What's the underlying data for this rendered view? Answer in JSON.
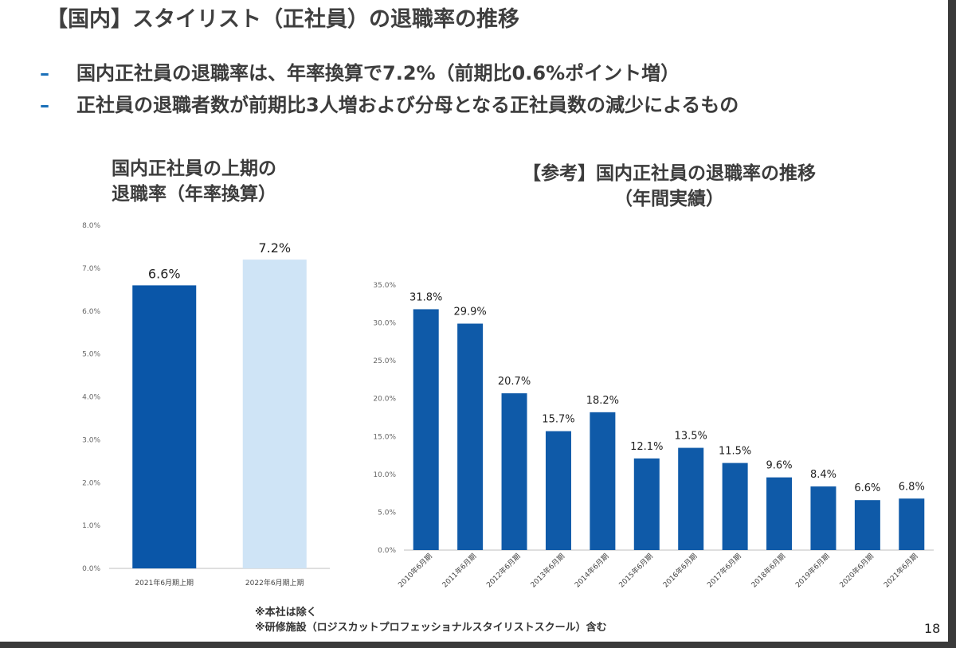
{
  "slide": {
    "title": "【国内】スタイリスト（正社員）の退職率の推移",
    "bullets": [
      "国内正社員の退職率は、年率換算で7.2%（前期比0.6%ポイント増）",
      "正社員の退職者数が前期比3人増および分母となる正社員数の減少によるもの"
    ],
    "bullet_marker": "–",
    "notes": [
      "※本社は除く",
      "※研修施設（ロジスカットプロフェッショナルスタイリストスクール）含む"
    ],
    "page_number": "18",
    "colors": {
      "dark_blue": "#0a56a8",
      "light_blue": "#cfe4f6",
      "bar_blue": "#0f5aa8"
    }
  },
  "chart_data": [
    {
      "type": "bar",
      "title_lines": [
        "国内正社員の上期の",
        "退職率（年率換算）"
      ],
      "categories": [
        "2021年6月期上期",
        "2022年6月期上期"
      ],
      "values": [
        6.6,
        7.2
      ],
      "data_labels": [
        "6.6%",
        "7.2%"
      ],
      "ylim": [
        0,
        8
      ],
      "yticks": [
        "0.0%",
        "1.0%",
        "2.0%",
        "3.0%",
        "4.0%",
        "5.0%",
        "6.0%",
        "7.0%",
        "8.0%"
      ],
      "bar_colors": [
        "#0a56a8",
        "#cfe4f6"
      ],
      "grid": false,
      "legend": "none"
    },
    {
      "type": "bar",
      "title_lines": [
        "【参考】国内正社員の退職率の推移",
        "（年間実績）"
      ],
      "categories": [
        "2010年6月期",
        "2011年6月期",
        "2012年6月期",
        "2013年6月期",
        "2014年6月期",
        "2015年6月期",
        "2016年6月期",
        "2017年6月期",
        "2018年6月期",
        "2019年6月期",
        "2020年6月期",
        "2021年6月期"
      ],
      "values": [
        31.8,
        29.9,
        20.7,
        15.7,
        18.2,
        12.1,
        13.5,
        11.5,
        9.6,
        8.4,
        6.6,
        6.8
      ],
      "data_labels": [
        "31.8%",
        "29.9%",
        "20.7%",
        "15.7%",
        "18.2%",
        "12.1%",
        "13.5%",
        "11.5%",
        "9.6%",
        "8.4%",
        "6.6%",
        "6.8%"
      ],
      "ylim": [
        0,
        35
      ],
      "yticks": [
        "0.0%",
        "5.0%",
        "10.0%",
        "15.0%",
        "20.0%",
        "25.0%",
        "30.0%",
        "35.0%"
      ],
      "bar_colors": [
        "#0f5aa8"
      ],
      "grid": false,
      "legend": "none"
    }
  ]
}
